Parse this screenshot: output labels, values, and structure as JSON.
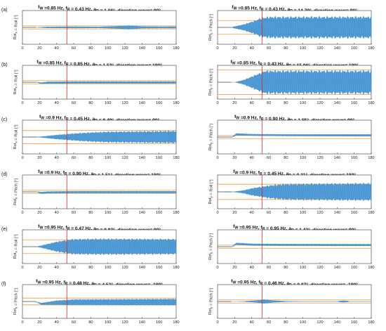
{
  "chart_data": [
    {
      "type": "line",
      "panel_label": "(a)",
      "title": "f_W =0.85 Hz, f_R = 0.43 Hz, a_R = 1.06°, direction wave= 90°",
      "ylabel": "Rot_x = Roll [°]",
      "xlim": [
        0,
        180
      ],
      "xticks": [
        0,
        20,
        40,
        60,
        80,
        100,
        120,
        140,
        160,
        180
      ],
      "red_line_x": 52,
      "orange_levels": [
        2,
        -2
      ],
      "series": [
        {
          "name": "",
          "envelope": [
            [
              0,
              0.05
            ],
            [
              15,
              0.05
            ],
            [
              20,
              0.5
            ],
            [
              30,
              1.0
            ],
            [
              60,
              1.2
            ],
            [
              90,
              1.0
            ],
            [
              110,
              1.8
            ],
            [
              125,
              2.8
            ],
            [
              140,
              1.5
            ],
            [
              160,
              1.2
            ],
            [
              180,
              1.4
            ]
          ],
          "offset": [
            [
              0,
              0
            ],
            [
              180,
              0
            ]
          ]
        }
      ]
    },
    {
      "type": "line",
      "panel_label": "",
      "title": "f_W =0.85 Hz, f_R = 0.43 Hz, a_R = 14.79°, direction wave= 90°",
      "ylabel": "Rot_y = Pitch [°]",
      "xlim": [
        0,
        180
      ],
      "xticks": [
        0,
        20,
        40,
        60,
        80,
        100,
        120,
        140,
        160,
        180
      ],
      "red_line_x": 52,
      "orange_levels": [
        9,
        -9
      ],
      "series": [
        {
          "name": "",
          "envelope": [
            [
              0,
              0
            ],
            [
              15,
              0
            ],
            [
              20,
              1.5
            ],
            [
              30,
              4
            ],
            [
              40,
              8
            ],
            [
              45,
              10
            ],
            [
              50,
              13
            ],
            [
              60,
              14.8
            ],
            [
              180,
              14.8
            ]
          ],
          "offset": [
            [
              0,
              0
            ],
            [
              180,
              0
            ]
          ]
        }
      ]
    },
    {
      "type": "line",
      "panel_label": "(b)",
      "title": "f_W =0.85 Hz, f_R = 0.85 Hz, a_R = 1.53°, direction wave= 180°",
      "ylabel": "Rot_x = Roll [°]",
      "xlim": [
        0,
        180
      ],
      "xticks": [
        0,
        20,
        40,
        60,
        80,
        100,
        120,
        140,
        160,
        180
      ],
      "red_line_x": 52,
      "orange_levels": [
        2,
        -2
      ],
      "series": [
        {
          "name": "",
          "envelope": [
            [
              0,
              0.05
            ],
            [
              15,
              0.1
            ],
            [
              20,
              0.8
            ],
            [
              30,
              1.5
            ],
            [
              180,
              1.5
            ]
          ],
          "offset": [
            [
              0,
              0
            ],
            [
              17,
              0
            ],
            [
              22,
              -1.2
            ],
            [
              30,
              -0.6
            ],
            [
              60,
              -0.3
            ],
            [
              180,
              -0.3
            ]
          ]
        }
      ]
    },
    {
      "type": "line",
      "panel_label": "",
      "title": "f_W =0.85 Hz, f_R = 0.43 Hz, a_R = 15.96°, direction wave= 180°",
      "ylabel": "Rot_y = Pitch [°]",
      "xlim": [
        0,
        180
      ],
      "xticks": [
        0,
        20,
        40,
        60,
        80,
        100,
        120,
        140,
        160,
        180
      ],
      "red_line_x": 52,
      "orange_levels": [
        16,
        -16
      ],
      "series": [
        {
          "name": "",
          "envelope": [
            [
              0,
              0
            ],
            [
              20,
              0
            ],
            [
              30,
              3
            ],
            [
              40,
              8
            ],
            [
              50,
              13
            ],
            [
              55,
              16
            ],
            [
              180,
              16
            ]
          ],
          "offset": [
            [
              0,
              0
            ],
            [
              180,
              0
            ]
          ]
        }
      ]
    },
    {
      "type": "line",
      "panel_label": "(c)",
      "title": "f_W =0.9 Hz, f_R = 0.45 Hz, a_R = 8.49°, direction wave= 90°",
      "ylabel": "Rot_x = Roll [°]",
      "xlim": [
        0,
        180
      ],
      "xticks": [
        0,
        20,
        40,
        60,
        80,
        100,
        120,
        140,
        160,
        180
      ],
      "red_line_x": 52,
      "orange_levels": [
        8.5,
        -8.5
      ],
      "series": [
        {
          "name": "",
          "envelope": [
            [
              0,
              0
            ],
            [
              20,
              0.5
            ],
            [
              40,
              3
            ],
            [
              60,
              5
            ],
            [
              80,
              6.5
            ],
            [
              100,
              7.5
            ],
            [
              180,
              8.5
            ]
          ],
          "offset": [
            [
              0,
              0
            ],
            [
              180,
              0
            ]
          ]
        }
      ]
    },
    {
      "type": "line",
      "panel_label": "",
      "title": "f_W =0.9 Hz, f_R = 0.90 Hz, a_R = 1.55°, direction wave= 90°",
      "ylabel": "Rot_y = Pitch [°]",
      "xlim": [
        0,
        180
      ],
      "xticks": [
        0,
        20,
        40,
        60,
        80,
        100,
        120,
        140,
        160,
        180
      ],
      "red_line_x": 52,
      "orange_levels": [
        2,
        -2
      ],
      "series": [
        {
          "name": "",
          "envelope": [
            [
              0,
              0
            ],
            [
              15,
              0.2
            ],
            [
              22,
              1.5
            ],
            [
              40,
              1.2
            ],
            [
              180,
              1.5
            ]
          ],
          "offset": [
            [
              0,
              0
            ],
            [
              17,
              0
            ],
            [
              22,
              3.5
            ],
            [
              40,
              2.8
            ],
            [
              80,
              2.4
            ],
            [
              180,
              2.2
            ]
          ]
        }
      ]
    },
    {
      "type": "line",
      "panel_label": "(d)",
      "title": "f_W =0.9 Hz, f_R = 0.90 Hz, a_R = 1.51°, direction wave= 180°",
      "ylabel": "Rot_x = Pitch [°]",
      "xlim": [
        0,
        180
      ],
      "xticks": [
        0,
        20,
        40,
        60,
        80,
        100,
        120,
        140,
        160,
        180
      ],
      "red_line_x": 52,
      "orange_levels": [
        2,
        -2
      ],
      "series": [
        {
          "name": "",
          "envelope": [
            [
              0,
              0.05
            ],
            [
              15,
              0.2
            ],
            [
              22,
              1.4
            ],
            [
              180,
              1.5
            ]
          ],
          "offset": [
            [
              0,
              0
            ],
            [
              17,
              0
            ],
            [
              22,
              -1.3
            ],
            [
              30,
              -0.7
            ],
            [
              60,
              -0.4
            ],
            [
              180,
              -0.4
            ]
          ]
        }
      ]
    },
    {
      "type": "line",
      "panel_label": "",
      "title": "f_W =0.9 Hz, f_R = 0.45 Hz, a_R = 0.31°, direction wave= 180°",
      "ylabel": "Rot_y = Roll [°]",
      "xlim": [
        0,
        180
      ],
      "xticks": [
        0,
        20,
        40,
        60,
        80,
        100,
        120,
        140,
        160,
        180
      ],
      "red_line_x": 52,
      "orange_levels": [
        10,
        -10
      ],
      "series": [
        {
          "name": "",
          "envelope": [
            [
              0,
              0
            ],
            [
              20,
              0.5
            ],
            [
              30,
              2
            ],
            [
              40,
              5
            ],
            [
              60,
              9
            ],
            [
              80,
              11
            ],
            [
              180,
              12
            ]
          ],
          "offset": [
            [
              0,
              0
            ],
            [
              180,
              0
            ]
          ]
        }
      ]
    },
    {
      "type": "line",
      "panel_label": "(e)",
      "title": "f_W =0.95 Hz, f_R = 0.47 Hz, a_R = 8.92°, direction wave= 90°",
      "ylabel": "Rot_x = Roll [°]",
      "xlim": [
        0,
        180
      ],
      "xticks": [
        0,
        20,
        40,
        60,
        80,
        100,
        120,
        140,
        160,
        180
      ],
      "red_line_x": 52,
      "orange_levels": [
        9,
        -9
      ],
      "series": [
        {
          "name": "",
          "envelope": [
            [
              0,
              0
            ],
            [
              15,
              0.2
            ],
            [
              20,
              1
            ],
            [
              30,
              4
            ],
            [
              40,
              7
            ],
            [
              50,
              9
            ],
            [
              60,
              10.5
            ],
            [
              90,
              11
            ],
            [
              180,
              10.5
            ]
          ],
          "offset": [
            [
              0,
              0
            ],
            [
              180,
              0
            ]
          ]
        }
      ]
    },
    {
      "type": "line",
      "panel_label": "",
      "title": "f_W =0.95 Hz, f_R = 0.95 Hz, a_R = 1.43°, direction wave= 90°",
      "ylabel": "Rot_y = Pitch [°]",
      "xlim": [
        0,
        180
      ],
      "xticks": [
        0,
        20,
        40,
        60,
        80,
        100,
        120,
        140,
        160,
        180
      ],
      "red_line_x": 52,
      "orange_levels": [
        2,
        -2
      ],
      "series": [
        {
          "name": "",
          "envelope": [
            [
              0,
              0
            ],
            [
              15,
              0.2
            ],
            [
              22,
              1.4
            ],
            [
              180,
              1.4
            ]
          ],
          "offset": [
            [
              0,
              0
            ],
            [
              17,
              0
            ],
            [
              22,
              3.8
            ],
            [
              40,
              2.6
            ],
            [
              80,
              2.3
            ],
            [
              180,
              2.1
            ]
          ]
        }
      ]
    },
    {
      "type": "line",
      "panel_label": "(f)",
      "title": "f_W =0.95 Hz, f_R = 0.48 Hz, a_R = 4.52°, direction wave= -180°",
      "ylabel": "Rot_x = Pitch [°]",
      "xlim": [
        0,
        180
      ],
      "xticks": [
        0,
        20,
        40,
        60,
        80,
        100,
        120,
        140,
        160,
        180
      ],
      "red_line_x": 52,
      "orange_levels": [
        4.5,
        -4.5
      ],
      "series": [
        {
          "name": "",
          "envelope": [
            [
              0,
              0
            ],
            [
              15,
              0.2
            ],
            [
              20,
              1
            ],
            [
              40,
              3
            ],
            [
              60,
              4
            ],
            [
              180,
              4.5
            ]
          ],
          "offset": [
            [
              0,
              0
            ],
            [
              15,
              0
            ],
            [
              22,
              -3
            ],
            [
              40,
              -1.5
            ],
            [
              60,
              -1
            ],
            [
              180,
              -0.8
            ]
          ]
        }
      ]
    },
    {
      "type": "line",
      "panel_label": "",
      "title": "f_W =0.95 Hz, f_R = 0.46 Hz, a_R = 0.87°, direction wave= -180°",
      "ylabel": "Rot_y = Pitch [°]",
      "xlim": [
        0,
        180
      ],
      "xticks": [
        0,
        20,
        40,
        60,
        80,
        100,
        120,
        140,
        160,
        180
      ],
      "red_line_x": 52,
      "orange_levels": [
        2,
        -2
      ],
      "series": [
        {
          "name": "",
          "envelope": [
            [
              0,
              0
            ],
            [
              20,
              0
            ],
            [
              30,
              0.4
            ],
            [
              45,
              1.5
            ],
            [
              55,
              3
            ],
            [
              65,
              1.5
            ],
            [
              80,
              0.6
            ],
            [
              100,
              0.3
            ],
            [
              140,
              0.3
            ],
            [
              145,
              1.2
            ],
            [
              150,
              1.2
            ],
            [
              155,
              0.3
            ],
            [
              180,
              0.3
            ]
          ],
          "offset": [
            [
              0,
              0
            ],
            [
              180,
              0
            ]
          ]
        }
      ]
    }
  ]
}
